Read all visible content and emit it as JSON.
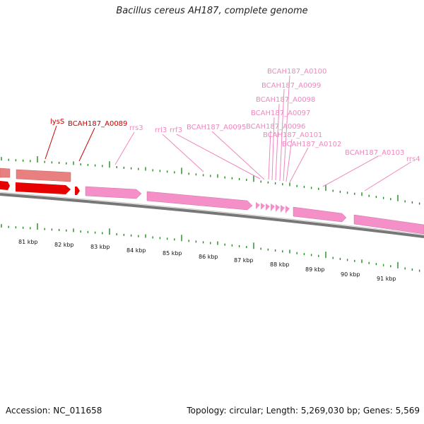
{
  "header": {
    "title": "Bacillus cereus AH187, complete genome"
  },
  "footer": {
    "accession": "Accession: NC_011658",
    "stats": "Topology: circular; Length: 5,269,030 bp; Genes: 5,569"
  },
  "colors": {
    "ticks": "#228b22",
    "gene_red": "#e60000",
    "gene_pink": "#f48fc8",
    "gene_salmon": "#e88080",
    "backbone": "#777777",
    "label_red": "#cc0000",
    "label_pink": "#ee88c0"
  },
  "kbp_labels": [
    "81 kbp",
    "82 kbp",
    "83 kbp",
    "84 kbp",
    "85 kbp",
    "86 kbp",
    "87 kbp",
    "88 kbp",
    "89 kbp",
    "90 kbp",
    "91 kbp"
  ],
  "feature_labels": [
    {
      "text": "lysS",
      "color": "red"
    },
    {
      "text": "BCAH187_A0089",
      "color": "red"
    },
    {
      "text": "rrs3",
      "color": "pink"
    },
    {
      "text": "rrl3",
      "color": "pink"
    },
    {
      "text": "rrf3",
      "color": "pink"
    },
    {
      "text": "BCAH187_A0095",
      "color": "pink"
    },
    {
      "text": "BCAH187_A0096",
      "color": "pink"
    },
    {
      "text": "BCAH187_A0097",
      "color": "pink"
    },
    {
      "text": "BCAH187_A0098",
      "color": "pink"
    },
    {
      "text": "BCAH187_A0099",
      "color": "pink"
    },
    {
      "text": "BCAH187_A0100",
      "color": "pink"
    },
    {
      "text": "BCAH187_A0101",
      "color": "pink"
    },
    {
      "text": "BCAH187_A0102",
      "color": "pink"
    },
    {
      "text": "BCAH187_A0103",
      "color": "pink"
    },
    {
      "text": "rrs4",
      "color": "pink"
    }
  ]
}
